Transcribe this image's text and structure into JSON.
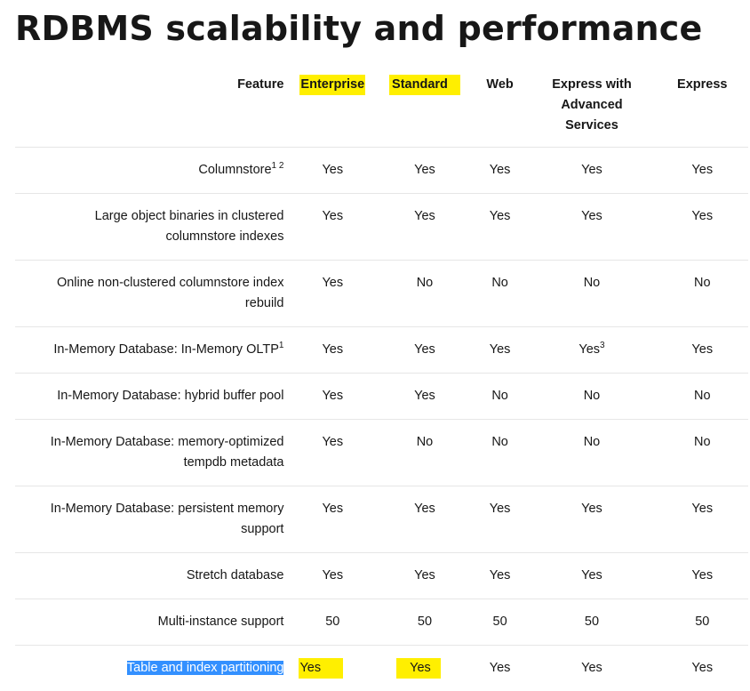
{
  "page": {
    "title": "RDBMS scalability and performance"
  },
  "table": {
    "headers": [
      "Feature",
      "Enterprise",
      "Standard",
      "Web",
      "Express with Advanced Services",
      "Express"
    ],
    "headers_display": {
      "h4_line1": "Express with",
      "h4_line2": "Advanced",
      "h4_line3": "Services"
    },
    "rows": [
      {
        "feature_line1": "Columnstore",
        "feature_sup": "1 2",
        "values": [
          "Yes",
          "Yes",
          "Yes",
          "Yes",
          "Yes"
        ]
      },
      {
        "feature_line1": "Large object binaries in clustered",
        "feature_line2": "columnstore indexes",
        "values": [
          "Yes",
          "Yes",
          "Yes",
          "Yes",
          "Yes"
        ]
      },
      {
        "feature_line1": "Online non-clustered columnstore index",
        "feature_line2": "rebuild",
        "values": [
          "Yes",
          "No",
          "No",
          "No",
          "No"
        ]
      },
      {
        "feature_line1": "In-Memory Database: In-Memory OLTP",
        "feature_sup": "1",
        "values": [
          "Yes",
          "Yes",
          "Yes",
          "Yes",
          "Yes"
        ],
        "value_sups": [
          "",
          "",
          "",
          "3",
          ""
        ]
      },
      {
        "feature_line1": "In-Memory Database: hybrid buffer pool",
        "values": [
          "Yes",
          "Yes",
          "No",
          "No",
          "No"
        ]
      },
      {
        "feature_line1": "In-Memory Database: memory-optimized",
        "feature_line2": "tempdb metadata",
        "values": [
          "Yes",
          "No",
          "No",
          "No",
          "No"
        ]
      },
      {
        "feature_line1": "In-Memory Database: persistent memory",
        "feature_line2": "support",
        "values": [
          "Yes",
          "Yes",
          "Yes",
          "Yes",
          "Yes"
        ]
      },
      {
        "feature_line1": "Stretch database",
        "values": [
          "Yes",
          "Yes",
          "Yes",
          "Yes",
          "Yes"
        ]
      },
      {
        "feature_line1": "Multi-instance support",
        "values": [
          "50",
          "50",
          "50",
          "50",
          "50"
        ]
      },
      {
        "feature_line1": "Table and index partitioning",
        "values": [
          "Yes",
          "Yes",
          "Yes",
          "Yes",
          "Yes"
        ]
      }
    ]
  },
  "colors": {
    "highlight_yellow": "#ffef00",
    "selection_blue": "#3390ff",
    "row_divider": "#e6e6e6"
  }
}
